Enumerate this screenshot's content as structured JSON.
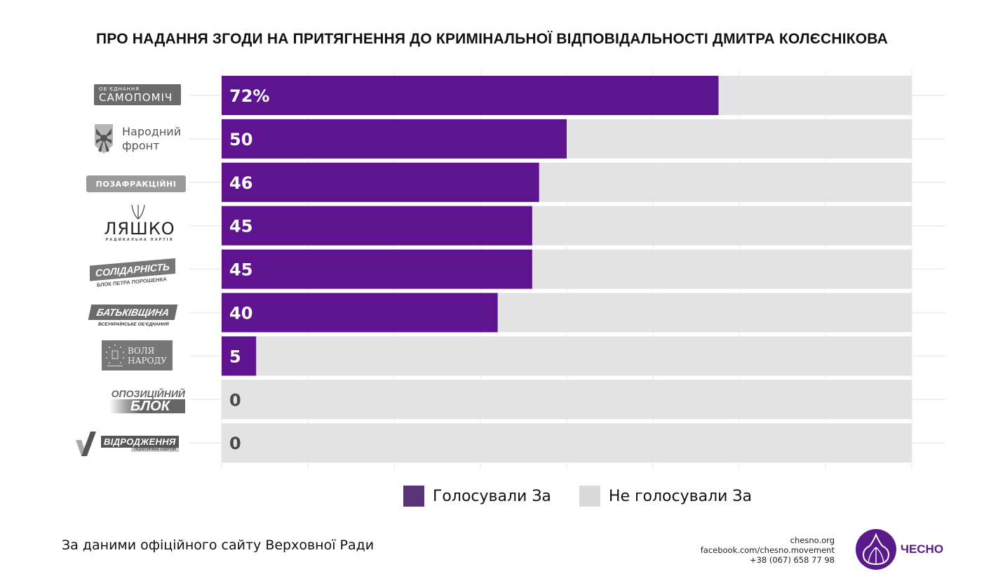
{
  "title": "ПРО НАДАННЯ ЗГОДИ НА ПРИТЯГНЕННЯ ДО КРИМІНАЛЬНОЇ ВІДПОВІДАЛЬНОСТІ ДМИТРА КОЛЄСНІКОВА",
  "colors": {
    "voted": "#5f148f",
    "not_voted": "#e3e3e3",
    "legend_voted": "#5b3478",
    "legend_not": "#dadada",
    "grid": "#ebebeb",
    "label_on_purple": "#ffffff",
    "label_on_gray": "#4a4a4a",
    "logo_gray": "#6b6b6b",
    "brand": "#5b1a8c"
  },
  "chart_data": {
    "type": "bar",
    "orientation": "horizontal",
    "stacked": true,
    "unit": "%",
    "xlim": [
      0,
      100
    ],
    "grid": true,
    "categories": [
      "Об'єднання Самопоміч",
      "Народний фронт",
      "Позафракційні",
      "Радикальна партія Ляшка",
      "Блок Петра Порошенка Солідарність",
      "Батьківщина",
      "Воля народу",
      "Опозиційний блок",
      "Відродження"
    ],
    "series": [
      {
        "name": "Голосували За",
        "values": [
          72,
          50,
          46,
          45,
          45,
          40,
          5,
          0,
          0
        ]
      },
      {
        "name": "Не голосували За",
        "values": [
          28,
          50,
          54,
          55,
          55,
          60,
          95,
          100,
          100
        ]
      }
    ],
    "data_labels": [
      "72%",
      "50",
      "46",
      "45",
      "45",
      "40",
      "5",
      "0",
      "0"
    ],
    "legend": [
      "Голосували За",
      "Не голосували За"
    ],
    "legend_position": "bottom"
  },
  "logos": [
    {
      "line1": "ОБ'ЄДНАННЯ",
      "line2": "САМОПОМІЧ"
    },
    {
      "line1": "Народний",
      "line2": "фронт"
    },
    {
      "line1": "ПОЗАФРАКЦІЙНІ"
    },
    {
      "line1": "ЛЯШКО",
      "line2": "РАДИКАЛЬНА ПАРТІЯ"
    },
    {
      "line1": "СОЛІДАРНІСТЬ",
      "line2": "БЛОК ПЕТРА ПОРОШЕНКА"
    },
    {
      "line1": "БАТЬКІВЩИНА",
      "line2": "ВСЕУКРАЇНСЬКЕ ОБ'ЄДНАННЯ"
    },
    {
      "line1": "ВОЛЯ",
      "line2": "НАРОДУ"
    },
    {
      "line1": "ОПОЗИЦІЙНИЙ",
      "line2": "БЛОК"
    },
    {
      "line1": "ВІДРОДЖЕННЯ",
      "line2": "ПОЛІТИЧНА ПАРТІЯ"
    }
  ],
  "legend_labels": {
    "voted": "Голосували За",
    "not_voted": "Не голосували За"
  },
  "footer": {
    "source": "За даними офіційного сайту Верховної Ради",
    "site": "chesno.org",
    "facebook": "facebook.com/chesno.movement",
    "phone": "+38 (067) 658 77 98",
    "brand": "ЧЕСНО"
  }
}
